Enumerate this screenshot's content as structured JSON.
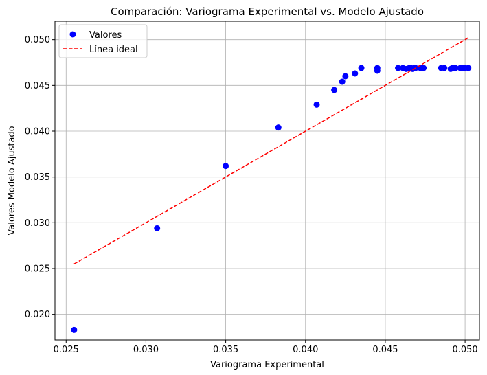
{
  "chart_data": {
    "type": "scatter",
    "title": "Comparación: Variograma Experimental vs. Modelo Ajustado",
    "xlabel": "Variograma Experimental",
    "ylabel": "Valores Modelo Ajustado",
    "xlim": [
      0.0243,
      0.0509
    ],
    "ylim": [
      0.0172,
      0.052
    ],
    "xticks": [
      0.025,
      0.03,
      0.035,
      0.04,
      0.045,
      0.05
    ],
    "xtick_labels": [
      "0.025",
      "0.030",
      "0.035",
      "0.040",
      "0.045",
      "0.050"
    ],
    "yticks": [
      0.02,
      0.025,
      0.03,
      0.035,
      0.04,
      0.045,
      0.05
    ],
    "ytick_labels": [
      "0.020",
      "0.025",
      "0.030",
      "0.035",
      "0.040",
      "0.045",
      "0.050"
    ],
    "grid": true,
    "legend_position": "top-left",
    "series": [
      {
        "name": "Valores",
        "type": "scatter",
        "color": "#0000ff",
        "x": [
          0.0255,
          0.0307,
          0.035,
          0.0383,
          0.0407,
          0.0418,
          0.0423,
          0.0425,
          0.0431,
          0.0435,
          0.0445,
          0.0445,
          0.0458,
          0.0461,
          0.0463,
          0.0465,
          0.0466,
          0.0467,
          0.0468,
          0.0469,
          0.0472,
          0.0473,
          0.0474,
          0.0485,
          0.0487,
          0.0491,
          0.0492,
          0.0493,
          0.0494,
          0.0497,
          0.0499,
          0.05,
          0.0502
        ],
        "y": [
          0.0183,
          0.0294,
          0.0362,
          0.0404,
          0.0429,
          0.0445,
          0.0454,
          0.046,
          0.0463,
          0.0469,
          0.0466,
          0.0469,
          0.0469,
          0.0469,
          0.0468,
          0.0469,
          0.0469,
          0.0468,
          0.0469,
          0.0469,
          0.0469,
          0.0469,
          0.0469,
          0.0469,
          0.0469,
          0.0468,
          0.0469,
          0.0469,
          0.0469,
          0.0469,
          0.0469,
          0.0469,
          0.0469
        ]
      },
      {
        "name": "Línea ideal",
        "type": "line",
        "style": "dashed",
        "color": "#ff0000",
        "x": [
          0.0255,
          0.0502
        ],
        "y": [
          0.0255,
          0.0502
        ]
      }
    ]
  }
}
